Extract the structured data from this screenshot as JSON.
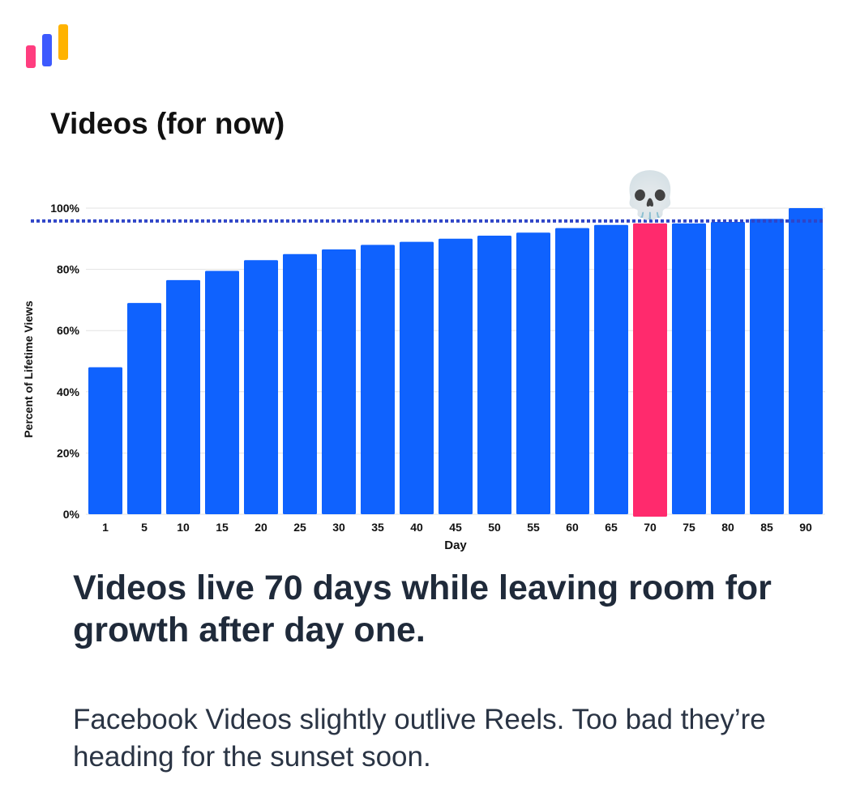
{
  "logo": {
    "bar_colors": [
      "#ff3d7f",
      "#3d5afe",
      "#ffb300"
    ]
  },
  "title": "Videos (for now)",
  "chart_data": {
    "type": "bar",
    "categories": [
      "1",
      "5",
      "10",
      "15",
      "20",
      "25",
      "30",
      "35",
      "40",
      "45",
      "50",
      "55",
      "60",
      "65",
      "70",
      "75",
      "80",
      "85",
      "90"
    ],
    "values": [
      48,
      69,
      76.5,
      79.5,
      83,
      85,
      86.5,
      88,
      89,
      90,
      91,
      92,
      93.5,
      94.5,
      95,
      95,
      95.5,
      96.5,
      100
    ],
    "highlight_category": "70",
    "reference_line": 95,
    "reference_marker": "💀",
    "xlabel": "Day",
    "ylabel": "Percent of Lifetime Views",
    "ylim": [
      0,
      100
    ],
    "yticks": [
      "0%",
      "20%",
      "40%",
      "60%",
      "80%",
      "100%"
    ],
    "grid": true,
    "colors": {
      "bar": "#0f62fe",
      "highlight": "#ff2a6d",
      "reference": "#2f45c8",
      "grid": "#e3e3e3",
      "text": "#111111"
    }
  },
  "headline": "Videos live 70 days while leaving room for growth after day one.",
  "subtext": "Facebook Videos slightly outlive Reels. Too bad they’re heading for the sunset soon."
}
